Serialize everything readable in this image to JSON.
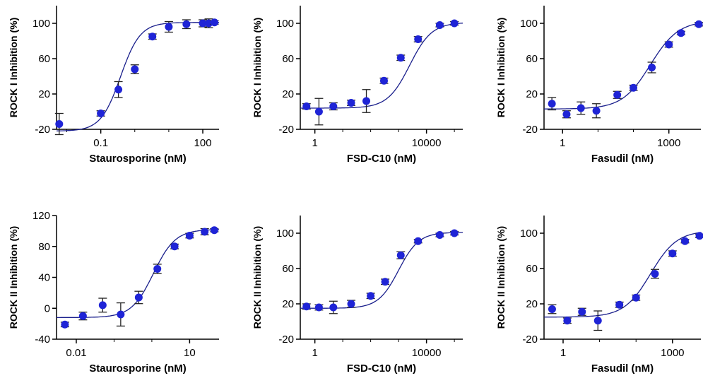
{
  "colors": {
    "point": "#1f24d6",
    "curve": "#1a1f8c",
    "axis": "#000000"
  },
  "chart_data": [
    {
      "type": "scatter",
      "curve": "sigmoid-fit",
      "xscale": "log",
      "xlabel": "Staurosporine (nM)",
      "ylabel": "ROCK I Inhibition (%)",
      "xlim": [
        0.005,
        300
      ],
      "ylim": [
        -20,
        120
      ],
      "xticks": [
        0.1,
        100
      ],
      "xtick_labels": [
        "0.1",
        "100"
      ],
      "yticks": [
        -20,
        20,
        60,
        100
      ],
      "ytick_labels": [
        "-20",
        "20",
        "60",
        "100"
      ],
      "fit": {
        "bottom": -22,
        "top": 101,
        "ec50": 0.38,
        "hill": 1.5
      },
      "points": [
        {
          "x": 0.006,
          "y": -14,
          "err": 12
        },
        {
          "x": 0.1,
          "y": -2,
          "err": 3
        },
        {
          "x": 0.33,
          "y": 25,
          "err": 9
        },
        {
          "x": 1,
          "y": 48,
          "err": 5
        },
        {
          "x": 3.3,
          "y": 85,
          "err": 3
        },
        {
          "x": 10,
          "y": 96,
          "err": 6
        },
        {
          "x": 33,
          "y": 99,
          "err": 5
        },
        {
          "x": 100,
          "y": 100,
          "err": 4
        },
        {
          "x": 150,
          "y": 100,
          "err": 5
        },
        {
          "x": 220,
          "y": 101,
          "err": 2
        }
      ]
    },
    {
      "type": "scatter",
      "curve": "sigmoid-fit",
      "xscale": "log",
      "xlabel": "FSD-C10 (nM)",
      "ylabel": "ROCK I Inhibition (%)",
      "xlim": [
        0.3,
        200000
      ],
      "ylim": [
        -20,
        120
      ],
      "xticks": [
        1,
        10000
      ],
      "xtick_labels": [
        "1",
        "10000"
      ],
      "yticks": [
        -20,
        20,
        60,
        100
      ],
      "ytick_labels": [
        "-20",
        "20",
        "60",
        "100"
      ],
      "fit": {
        "bottom": 4,
        "top": 101,
        "ec50": 2500,
        "hill": 1.1
      },
      "points": [
        {
          "x": 0.5,
          "y": 6,
          "err": 3
        },
        {
          "x": 1.4,
          "y": 0,
          "err": 15
        },
        {
          "x": 4.6,
          "y": 6,
          "err": 4
        },
        {
          "x": 20,
          "y": 10,
          "err": 3
        },
        {
          "x": 70,
          "y": 12,
          "err": 13
        },
        {
          "x": 300,
          "y": 35,
          "err": 3
        },
        {
          "x": 1200,
          "y": 61,
          "err": 3
        },
        {
          "x": 5000,
          "y": 82,
          "err": 3
        },
        {
          "x": 30000,
          "y": 98,
          "err": 2
        },
        {
          "x": 100000,
          "y": 100,
          "err": 2
        }
      ]
    },
    {
      "type": "scatter",
      "curve": "sigmoid-fit",
      "xscale": "log",
      "xlabel": "Fasudil (nM)",
      "ylabel": "ROCK I Inhibition (%)",
      "xlim": [
        0.3,
        8000
      ],
      "ylim": [
        -20,
        120
      ],
      "xticks": [
        1,
        1000
      ],
      "xtick_labels": [
        "1",
        "1000"
      ],
      "yticks": [
        -20,
        20,
        60,
        100
      ],
      "ytick_labels": [
        "-20",
        "20",
        "60",
        "100"
      ],
      "fit": {
        "bottom": 3,
        "top": 103,
        "ec50": 300,
        "hill": 1.1
      },
      "points": [
        {
          "x": 0.5,
          "y": 9,
          "err": 7
        },
        {
          "x": 1.3,
          "y": -3,
          "err": 4
        },
        {
          "x": 3.3,
          "y": 4,
          "err": 7
        },
        {
          "x": 9,
          "y": 1,
          "err": 8
        },
        {
          "x": 35,
          "y": 19,
          "err": 4
        },
        {
          "x": 100,
          "y": 27,
          "err": 3
        },
        {
          "x": 330,
          "y": 50,
          "err": 6
        },
        {
          "x": 1000,
          "y": 76,
          "err": 3
        },
        {
          "x": 2200,
          "y": 89,
          "err": 2
        },
        {
          "x": 7000,
          "y": 99,
          "err": 2
        }
      ]
    },
    {
      "type": "scatter",
      "curve": "sigmoid-fit",
      "xscale": "log",
      "xlabel": "Staurosporine (nM)",
      "ylabel": "ROCK II Inhibition (%)",
      "xlim": [
        0.003,
        60
      ],
      "ylim": [
        -40,
        120
      ],
      "xticks": [
        0.01,
        10
      ],
      "xtick_labels": [
        "0.01",
        "10"
      ],
      "yticks": [
        -40,
        0,
        40,
        80,
        120
      ],
      "ytick_labels": [
        "-40",
        "0",
        "40",
        "80",
        "120"
      ],
      "fit": {
        "bottom": -12,
        "top": 102,
        "ec50": 1.1,
        "hill": 1.5
      },
      "points": [
        {
          "x": 0.005,
          "y": -21,
          "err": 3
        },
        {
          "x": 0.015,
          "y": -10,
          "err": 5
        },
        {
          "x": 0.05,
          "y": 4,
          "err": 9
        },
        {
          "x": 0.15,
          "y": -8,
          "err": 15
        },
        {
          "x": 0.45,
          "y": 14,
          "err": 8
        },
        {
          "x": 1.4,
          "y": 51,
          "err": 6
        },
        {
          "x": 4,
          "y": 80,
          "err": 3
        },
        {
          "x": 10,
          "y": 94,
          "err": 3
        },
        {
          "x": 25,
          "y": 99,
          "err": 4
        },
        {
          "x": 45,
          "y": 101,
          "err": 2
        }
      ]
    },
    {
      "type": "scatter",
      "curve": "sigmoid-fit",
      "xscale": "log",
      "xlabel": "FSD-C10 (nM)",
      "ylabel": "ROCK II Inhibition (%)",
      "xlim": [
        0.3,
        200000
      ],
      "ylim": [
        -20,
        120
      ],
      "xticks": [
        1,
        10000
      ],
      "xtick_labels": [
        "1",
        "10000"
      ],
      "yticks": [
        -20,
        20,
        60,
        100
      ],
      "ytick_labels": [
        "-20",
        "20",
        "60",
        "100"
      ],
      "fit": {
        "bottom": 15,
        "top": 101,
        "ec50": 1000,
        "hill": 1.2
      },
      "points": [
        {
          "x": 0.5,
          "y": 17,
          "err": 3
        },
        {
          "x": 1.4,
          "y": 16,
          "err": 3
        },
        {
          "x": 4.6,
          "y": 16,
          "err": 7
        },
        {
          "x": 20,
          "y": 20,
          "err": 4
        },
        {
          "x": 100,
          "y": 29,
          "err": 3
        },
        {
          "x": 330,
          "y": 45,
          "err": 3
        },
        {
          "x": 1200,
          "y": 75,
          "err": 4
        },
        {
          "x": 5000,
          "y": 91,
          "err": 2
        },
        {
          "x": 30000,
          "y": 98,
          "err": 2
        },
        {
          "x": 100000,
          "y": 100,
          "err": 2
        }
      ]
    },
    {
      "type": "scatter",
      "curve": "sigmoid-fit",
      "xscale": "log",
      "xlabel": "Fasudil (nM)",
      "ylabel": "ROCK II Inhibition (%)",
      "xlim": [
        0.3,
        6000
      ],
      "ylim": [
        -20,
        120
      ],
      "xticks": [
        1,
        1000
      ],
      "xtick_labels": [
        "1",
        "1000"
      ],
      "yticks": [
        -20,
        20,
        60,
        100
      ],
      "ytick_labels": [
        "-20",
        "20",
        "60",
        "100"
      ],
      "fit": {
        "bottom": 5,
        "top": 103,
        "ec50": 250,
        "hill": 1.2
      },
      "points": [
        {
          "x": 0.5,
          "y": 14,
          "err": 5
        },
        {
          "x": 1.3,
          "y": 1,
          "err": 3
        },
        {
          "x": 3.3,
          "y": 11,
          "err": 4
        },
        {
          "x": 9,
          "y": 1,
          "err": 11
        },
        {
          "x": 35,
          "y": 19,
          "err": 3
        },
        {
          "x": 100,
          "y": 27,
          "err": 3
        },
        {
          "x": 330,
          "y": 54,
          "err": 5
        },
        {
          "x": 1000,
          "y": 77,
          "err": 3
        },
        {
          "x": 2200,
          "y": 91,
          "err": 2
        },
        {
          "x": 5500,
          "y": 97,
          "err": 2
        }
      ]
    }
  ]
}
